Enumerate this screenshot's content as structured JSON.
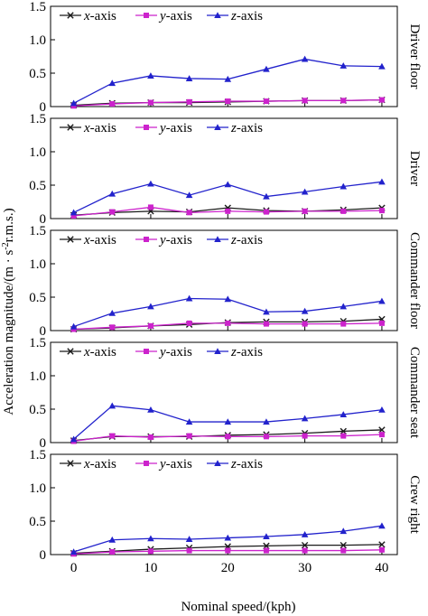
{
  "chart_data": {
    "type": "line",
    "xlabel": "Nominal speed/(kph)",
    "ylabel_prefix": "Acceleration magnitude/(m · s",
    "ylabel_sup": "-2",
    "ylabel_suffix": "r.m.s.)",
    "x": [
      0,
      5,
      10,
      15,
      20,
      25,
      30,
      35,
      40
    ],
    "xticks": [
      0,
      10,
      20,
      30,
      40
    ],
    "yticks": [
      0,
      0.5,
      1.0,
      1.5
    ],
    "ytick_labels": [
      "0",
      "0.5",
      "1.0",
      "1.5"
    ],
    "ylim": [
      0,
      1.5
    ],
    "xlim": [
      -3,
      42
    ],
    "legend": [
      {
        "label": "x-axis",
        "color": "#1a1a1a",
        "marker": "x"
      },
      {
        "label": "y-axis",
        "color": "#cc22cc",
        "marker": "square"
      },
      {
        "label": "z-axis",
        "color": "#2222cc",
        "marker": "triangle"
      }
    ],
    "panels": [
      {
        "label": "Driver floor",
        "series": [
          {
            "name": "x-axis",
            "values": [
              0.02,
              0.05,
              0.06,
              0.06,
              0.07,
              0.08,
              0.09,
              0.09,
              0.1
            ]
          },
          {
            "name": "y-axis",
            "values": [
              0.01,
              0.04,
              0.06,
              0.07,
              0.08,
              0.08,
              0.09,
              0.09,
              0.1
            ]
          },
          {
            "name": "z-axis",
            "values": [
              0.05,
              0.35,
              0.46,
              0.42,
              0.41,
              0.56,
              0.71,
              0.61,
              0.6
            ]
          }
        ]
      },
      {
        "label": "Driver",
        "series": [
          {
            "name": "x-axis",
            "values": [
              0.05,
              0.09,
              0.11,
              0.1,
              0.16,
              0.12,
              0.11,
              0.13,
              0.16
            ]
          },
          {
            "name": "y-axis",
            "values": [
              0.04,
              0.1,
              0.17,
              0.09,
              0.11,
              0.1,
              0.11,
              0.11,
              0.12
            ]
          },
          {
            "name": "z-axis",
            "values": [
              0.09,
              0.37,
              0.52,
              0.35,
              0.51,
              0.33,
              0.4,
              0.48,
              0.55
            ]
          }
        ]
      },
      {
        "label": "Commander floor",
        "series": [
          {
            "name": "x-axis",
            "values": [
              0.02,
              0.04,
              0.07,
              0.09,
              0.12,
              0.13,
              0.13,
              0.14,
              0.17
            ]
          },
          {
            "name": "y-axis",
            "values": [
              0.02,
              0.05,
              0.07,
              0.11,
              0.11,
              0.1,
              0.1,
              0.1,
              0.11
            ]
          },
          {
            "name": "z-axis",
            "values": [
              0.06,
              0.26,
              0.36,
              0.48,
              0.47,
              0.28,
              0.29,
              0.36,
              0.44
            ]
          }
        ]
      },
      {
        "label": "Commander seat",
        "series": [
          {
            "name": "x-axis",
            "values": [
              0.03,
              0.09,
              0.09,
              0.09,
              0.11,
              0.12,
              0.14,
              0.17,
              0.19
            ]
          },
          {
            "name": "y-axis",
            "values": [
              0.02,
              0.1,
              0.08,
              0.1,
              0.09,
              0.09,
              0.1,
              0.1,
              0.12
            ]
          },
          {
            "name": "z-axis",
            "values": [
              0.05,
              0.55,
              0.49,
              0.31,
              0.31,
              0.31,
              0.36,
              0.42,
              0.49
            ]
          }
        ]
      },
      {
        "label": "Crew right",
        "series": [
          {
            "name": "x-axis",
            "values": [
              0.02,
              0.05,
              0.08,
              0.1,
              0.12,
              0.13,
              0.14,
              0.14,
              0.15
            ]
          },
          {
            "name": "y-axis",
            "values": [
              0.01,
              0.04,
              0.05,
              0.06,
              0.06,
              0.06,
              0.06,
              0.06,
              0.07
            ]
          },
          {
            "name": "z-axis",
            "values": [
              0.04,
              0.22,
              0.24,
              0.23,
              0.25,
              0.27,
              0.3,
              0.35,
              0.43
            ]
          }
        ]
      }
    ]
  }
}
